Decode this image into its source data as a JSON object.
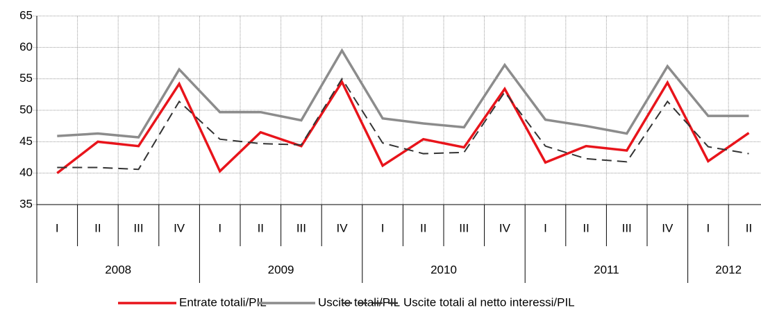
{
  "chart_data": {
    "type": "line",
    "years": [
      {
        "label": "2008",
        "quarters": [
          "I",
          "II",
          "III",
          "IV"
        ]
      },
      {
        "label": "2009",
        "quarters": [
          "I",
          "II",
          "III",
          "IV"
        ]
      },
      {
        "label": "2010",
        "quarters": [
          "I",
          "II",
          "III",
          "IV"
        ]
      },
      {
        "label": "2011",
        "quarters": [
          "I",
          "II",
          "III",
          "IV"
        ]
      },
      {
        "label": "2012",
        "quarters": [
          "I",
          "II"
        ]
      }
    ],
    "series": [
      {
        "name": "Entrate totali/PIL",
        "color": "#e8141b",
        "dash": "solid",
        "values": [
          40.0,
          45.0,
          44.3,
          54.2,
          40.3,
          46.5,
          44.3,
          54.5,
          41.2,
          45.4,
          44.1,
          53.4,
          41.7,
          44.3,
          43.6,
          54.4,
          41.9,
          46.4
        ]
      },
      {
        "name": "Uscite totali/PIL",
        "color": "#8c8c8c",
        "dash": "solid",
        "values": [
          45.9,
          46.3,
          45.7,
          56.5,
          49.7,
          49.7,
          48.4,
          59.5,
          48.7,
          47.9,
          47.3,
          57.2,
          48.5,
          47.5,
          46.3,
          57.0,
          49.1,
          49.1
        ]
      },
      {
        "name": "Uscite totali al netto interessi/PIL",
        "color": "#333333",
        "dash": "dashed",
        "values": [
          40.9,
          40.9,
          40.6,
          51.4,
          45.4,
          44.7,
          44.5,
          55.0,
          44.8,
          43.1,
          43.3,
          52.9,
          44.3,
          42.3,
          41.8,
          51.4,
          44.2,
          43.1
        ]
      }
    ],
    "ylim": [
      35,
      65
    ],
    "yticks": [
      35,
      40,
      45,
      50,
      55,
      60,
      65
    ],
    "grid": true,
    "legend": "bottom"
  }
}
